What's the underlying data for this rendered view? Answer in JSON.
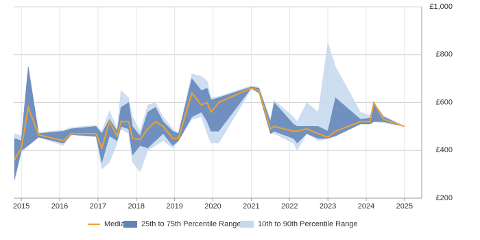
{
  "chart_data": {
    "type": "percentile-bands",
    "x": [
      2014.82,
      2015.0,
      2015.18,
      2015.45,
      2016.1,
      2016.3,
      2016.95,
      2017.1,
      2017.3,
      2017.5,
      2017.6,
      2017.8,
      2017.9,
      2018.1,
      2018.3,
      2018.5,
      2018.7,
      2018.95,
      2019.1,
      2019.45,
      2019.7,
      2019.85,
      2019.95,
      2020.15,
      2021.0,
      2021.2,
      2021.5,
      2021.6,
      2022.1,
      2022.2,
      2022.45,
      2022.75,
      2023.0,
      2023.2,
      2023.85,
      2024.1,
      2024.2,
      2024.45,
      2025.0
    ],
    "series": [
      {
        "name": "10th to 90th Percentile Range",
        "color": "#c6d8ee",
        "low": [
          270,
          390,
          420,
          455,
          420,
          465,
          455,
          320,
          350,
          430,
          490,
          470,
          350,
          310,
          400,
          420,
          440,
          410,
          440,
          530,
          540,
          470,
          430,
          430,
          655,
          640,
          470,
          470,
          430,
          400,
          470,
          440,
          450,
          460,
          510,
          510,
          520,
          515,
          500
        ],
        "high": [
          470,
          460,
          750,
          475,
          485,
          495,
          505,
          480,
          565,
          490,
          650,
          620,
          540,
          480,
          590,
          600,
          540,
          490,
          470,
          720,
          710,
          690,
          620,
          625,
          670,
          665,
          530,
          610,
          540,
          520,
          600,
          560,
          850,
          750,
          560,
          545,
          600,
          545,
          500
        ]
      },
      {
        "name": "25th to 75th Percentile Range",
        "color": "#5f84b6",
        "low": [
          280,
          400,
          420,
          455,
          430,
          465,
          460,
          350,
          460,
          440,
          500,
          490,
          380,
          420,
          410,
          440,
          470,
          420,
          440,
          540,
          560,
          520,
          480,
          480,
          660,
          640,
          470,
          480,
          450,
          430,
          470,
          450,
          450,
          460,
          510,
          510,
          520,
          520,
          500
        ],
        "high": [
          450,
          440,
          750,
          470,
          480,
          490,
          500,
          470,
          530,
          480,
          580,
          600,
          500,
          460,
          560,
          580,
          520,
          480,
          470,
          700,
          650,
          660,
          610,
          620,
          665,
          660,
          520,
          600,
          510,
          500,
          500,
          500,
          480,
          620,
          530,
          535,
          600,
          540,
          500
        ]
      },
      {
        "name": "Median",
        "color": "#f0a030",
        "values": [
          360,
          410,
          580,
          465,
          440,
          470,
          470,
          410,
          520,
          460,
          520,
          520,
          450,
          445,
          490,
          520,
          500,
          450,
          450,
          640,
          590,
          600,
          560,
          600,
          660,
          650,
          490,
          500,
          480,
          480,
          490,
          470,
          455,
          480,
          520,
          520,
          600,
          530,
          500
        ]
      }
    ],
    "xlim": [
      2014.8,
      2025.45
    ],
    "xticks": [
      2015,
      2016,
      2017,
      2018,
      2019,
      2020,
      2021,
      2022,
      2023,
      2024,
      2025
    ],
    "ylim": [
      200,
      1000
    ],
    "yticks": [
      {
        "value": 200,
        "label": "£200"
      },
      {
        "value": 400,
        "label": "£400"
      },
      {
        "value": 600,
        "label": "£600"
      },
      {
        "value": 800,
        "label": "£800"
      },
      {
        "value": 1000,
        "label": "£1,000"
      }
    ],
    "grid": true
  }
}
